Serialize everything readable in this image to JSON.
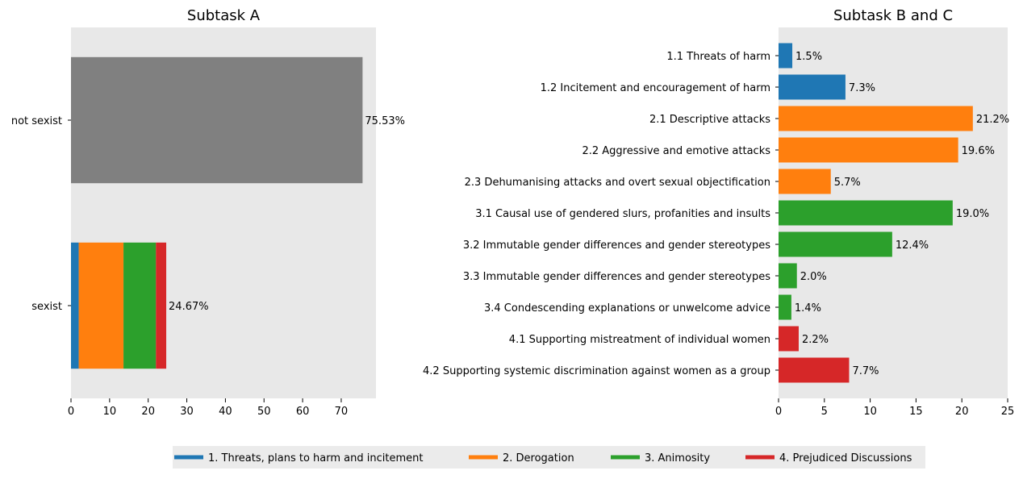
{
  "colors": {
    "threats": "#1f77b4",
    "derogation": "#ff7f0e",
    "animosity": "#2ca02c",
    "prejudiced": "#d62728",
    "not_sexist": "#808080",
    "axes_bg": "#e8e8e8",
    "legend_bg": "#ebebeb"
  },
  "chart_data": [
    {
      "type": "bar",
      "orientation": "horizontal",
      "stacked": true,
      "title": "Subtask A",
      "categories": [
        "not sexist",
        "sexist"
      ],
      "series": [
        {
          "key": "not_sexist",
          "values": [
            75.53,
            0
          ]
        },
        {
          "key": "threats",
          "values": [
            0,
            2.0
          ]
        },
        {
          "key": "derogation",
          "values": [
            0,
            11.6
          ]
        },
        {
          "key": "animosity",
          "values": [
            0,
            8.4
          ]
        },
        {
          "key": "prejudiced",
          "values": [
            0,
            2.67
          ]
        }
      ],
      "data_labels": [
        "75.53%",
        "24.67%"
      ],
      "totals": [
        75.53,
        24.67
      ],
      "xlim": [
        0,
        79
      ],
      "xticks": [
        0,
        10,
        20,
        30,
        40,
        50,
        60,
        70
      ],
      "grid": false
    },
    {
      "type": "bar",
      "orientation": "horizontal",
      "title": "Subtask B and C",
      "categories": [
        "1.1 Threats of harm",
        "1.2 Incitement and encouragement of harm",
        "2.1 Descriptive attacks",
        "2.2 Aggressive and emotive attacks",
        "2.3 Dehumanising attacks and overt sexual objectification",
        "3.1 Causal use of gendered slurs, profanities and insults",
        "3.2 Immutable gender differences and gender stereotypes",
        "3.3 Immutable gender differences and gender stereotypes",
        "3.4 Condescending explanations or unwelcome advice",
        "4.1 Supporting mistreatment of individual women",
        "4.2 Supporting systemic discrimination against women as a group"
      ],
      "values": [
        1.5,
        7.3,
        21.2,
        19.6,
        5.7,
        19.0,
        12.4,
        2.0,
        1.4,
        2.2,
        7.7
      ],
      "data_labels": [
        "1.5%",
        "7.3%",
        "21.2%",
        "19.6%",
        "5.7%",
        "19.0%",
        "12.4%",
        "2.0%",
        "1.4%",
        "2.2%",
        "7.7%"
      ],
      "color_keys": [
        "threats",
        "threats",
        "derogation",
        "derogation",
        "derogation",
        "animosity",
        "animosity",
        "animosity",
        "animosity",
        "prejudiced",
        "prejudiced"
      ],
      "xlim": [
        0,
        25
      ],
      "xticks": [
        0,
        5,
        10,
        15,
        20,
        25
      ],
      "grid": false
    }
  ],
  "legend": {
    "placement": "bottom-center",
    "items": [
      {
        "label": "1. Threats, plans to harm and incitement",
        "color_key": "threats"
      },
      {
        "label": "2. Derogation",
        "color_key": "derogation"
      },
      {
        "label": "3. Animosity",
        "color_key": "animosity"
      },
      {
        "label": "4. Prejudiced Discussions",
        "color_key": "prejudiced"
      }
    ]
  }
}
